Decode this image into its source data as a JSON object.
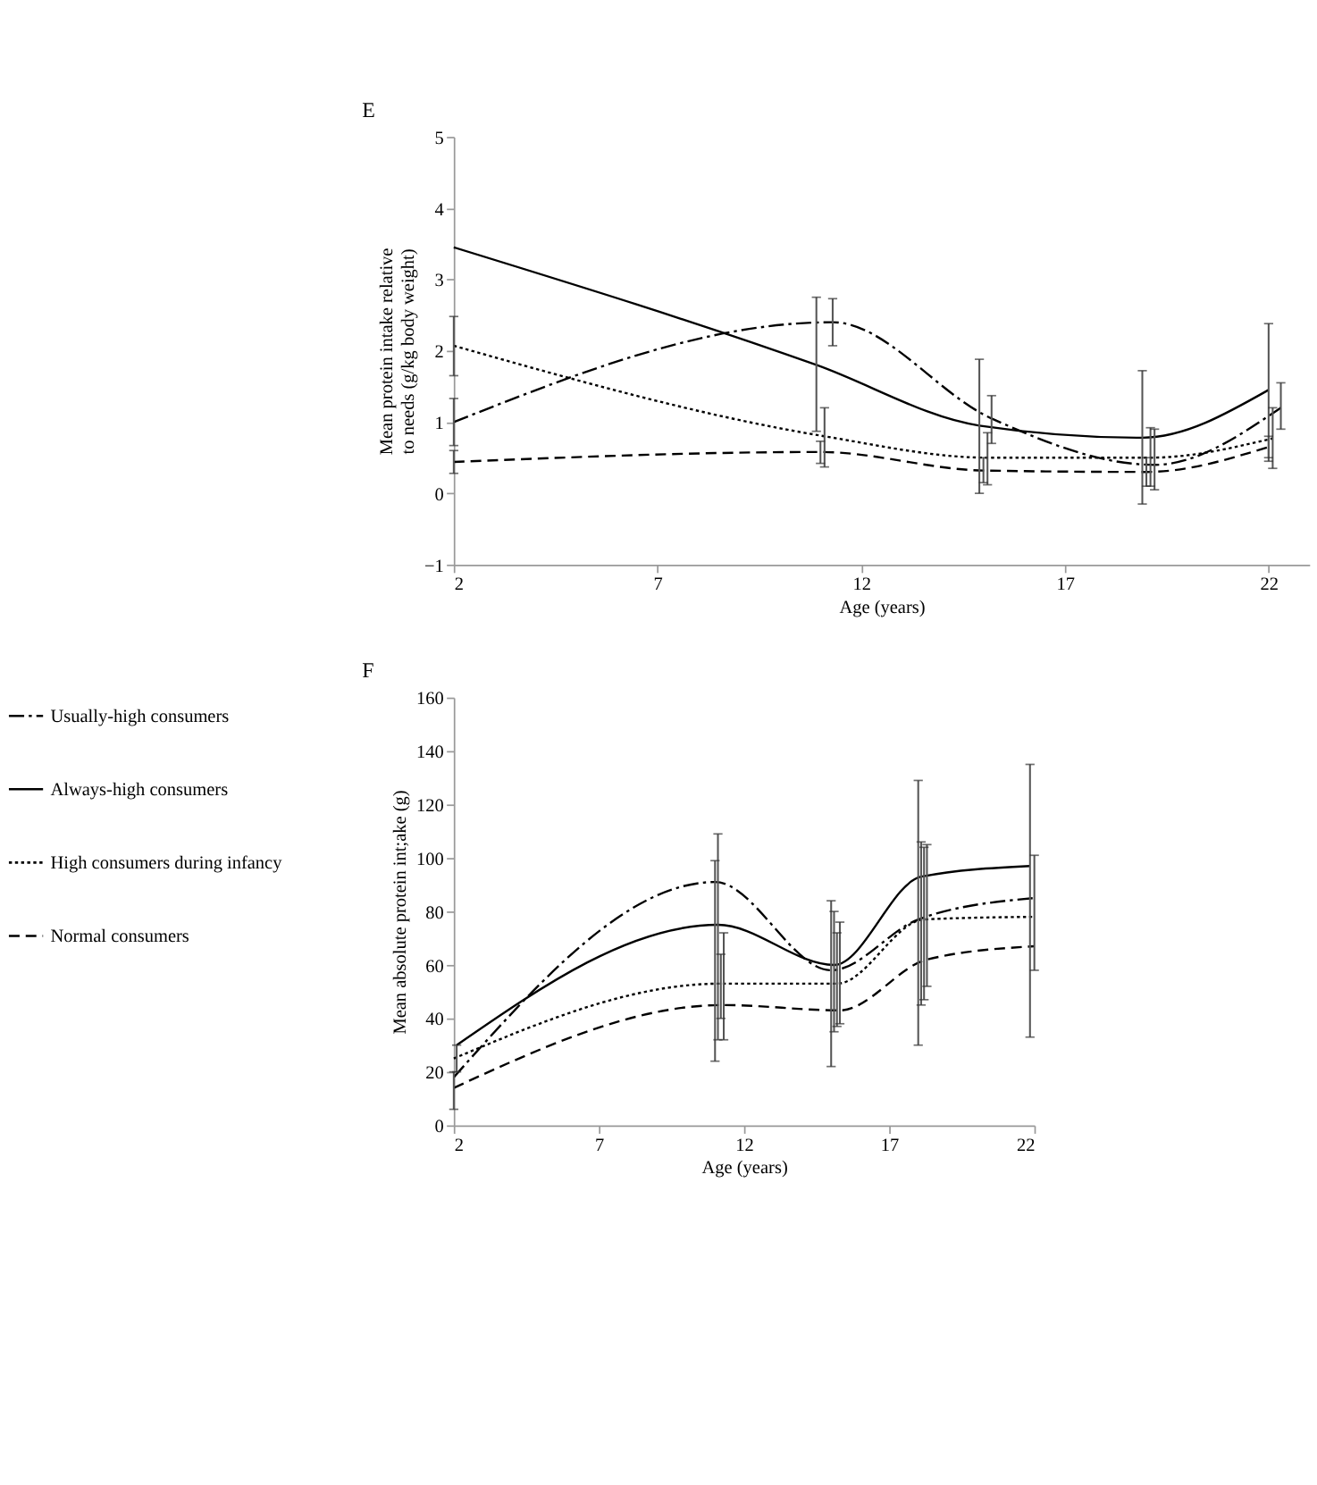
{
  "chart_data": [
    {
      "type": "line",
      "title": "E",
      "xlabel": "Age (years)",
      "ylabel": "Mean protein intake relative to needs (g/kg body weight)",
      "xlim": [
        2,
        23
      ],
      "xticks": [
        2,
        7,
        12,
        17,
        22
      ],
      "ylim": [
        -1,
        5
      ],
      "yticks": [
        -1,
        0,
        1,
        2,
        3,
        4,
        5
      ],
      "grid": false,
      "legend": false,
      "marker": "none",
      "series": [
        {
          "color": "#000000",
          "line_style": "dashdot",
          "x": [
            2,
            11.3,
            15.2,
            19.2,
            22.3
          ],
          "values": [
            1.0,
            2.4,
            1.05,
            0.4,
            1.2
          ],
          "errors": [
            [
              0.67,
              1.33
            ],
            [
              2.07,
              2.73
            ],
            [
              0.7,
              1.37
            ],
            [
              0.05,
              0.9
            ],
            [
              0.9,
              1.55
            ]
          ]
        },
        {
          "color": "#000000",
          "line_style": "solid",
          "x": [
            2,
            10.9,
            14.9,
            18.9,
            22
          ],
          "values": [
            3.45,
            1.8,
            0.95,
            0.78,
            1.45
          ],
          "errors": [
            null,
            [
              0.87,
              2.75
            ],
            [
              0,
              1.88
            ],
            [
              -0.15,
              1.72
            ],
            [
              0.45,
              2.38
            ]
          ]
        },
        {
          "color": "#000000",
          "line_style": "dotted",
          "x": [
            2,
            11.1,
            15.1,
            19.1,
            22.1
          ],
          "values": [
            2.07,
            0.8,
            0.5,
            0.5,
            0.77
          ],
          "errors": [
            [
              1.65,
              2.48
            ],
            [
              0.37,
              1.2
            ],
            [
              0.12,
              0.85
            ],
            [
              0.1,
              0.92
            ],
            [
              0.35,
              1.2
            ]
          ]
        },
        {
          "color": "#000000",
          "line_style": "dashed",
          "x": [
            2,
            11,
            15,
            19,
            22
          ],
          "values": [
            0.44,
            0.58,
            0.32,
            0.3,
            0.65
          ],
          "errors": [
            [
              0.28,
              0.6
            ],
            [
              0.42,
              0.73
            ],
            [
              0.15,
              0.5
            ],
            [
              0.1,
              0.5
            ],
            [
              0.5,
              0.8
            ]
          ]
        }
      ]
    },
    {
      "type": "line",
      "title": "F",
      "xlabel": "Age (years)",
      "ylabel": "Mean absolute protein int;ake (g)",
      "xlim": [
        2,
        22
      ],
      "xticks": [
        2,
        7,
        12,
        17,
        22
      ],
      "ylim": [
        0,
        160
      ],
      "yticks": [
        0,
        20,
        40,
        60,
        80,
        100,
        120,
        140,
        160
      ],
      "grid": false,
      "legend": "left",
      "marker": "none",
      "series": [
        {
          "name": "Usually-high consumers",
          "color": "#000000",
          "line_style": "dashdot",
          "x": [
            2,
            11,
            15,
            18,
            22
          ],
          "values": [
            18,
            91,
            58,
            77,
            85
          ],
          "errors": [
            null,
            [
              24,
              99
            ],
            [
              22,
              84
            ],
            [
              30,
              129
            ],
            [
              58,
              101
            ]
          ]
        },
        {
          "name": "Always-high consumers",
          "color": "#000000",
          "line_style": "solid",
          "x": [
            2.1,
            11.1,
            15.1,
            18.1,
            21.85
          ],
          "values": [
            30,
            75,
            60,
            93,
            97
          ],
          "errors": [
            [
              20,
              30
            ],
            [
              32,
              109
            ],
            [
              35,
              80
            ],
            [
              45,
              106
            ],
            [
              33,
              135
            ]
          ]
        },
        {
          "name": "High consumers during infancy",
          "color": "#000000",
          "line_style": "dotted",
          "x": [
            2,
            11.2,
            15.2,
            18.2,
            22
          ],
          "values": [
            25,
            53,
            53,
            77,
            78
          ],
          "errors": [
            null,
            [
              40,
              64
            ],
            [
              37,
              72
            ],
            [
              47,
              104
            ],
            null
          ]
        },
        {
          "name": "Normal consumers",
          "color": "#000000",
          "line_style": "dashed",
          "x": [
            2,
            11.3,
            15.3,
            18.3,
            22
          ],
          "values": [
            14,
            45,
            43,
            62,
            67
          ],
          "errors": [
            [
              6,
              20
            ],
            [
              32,
              72
            ],
            [
              38,
              76
            ],
            [
              52,
              105
            ],
            null
          ]
        }
      ]
    }
  ]
}
